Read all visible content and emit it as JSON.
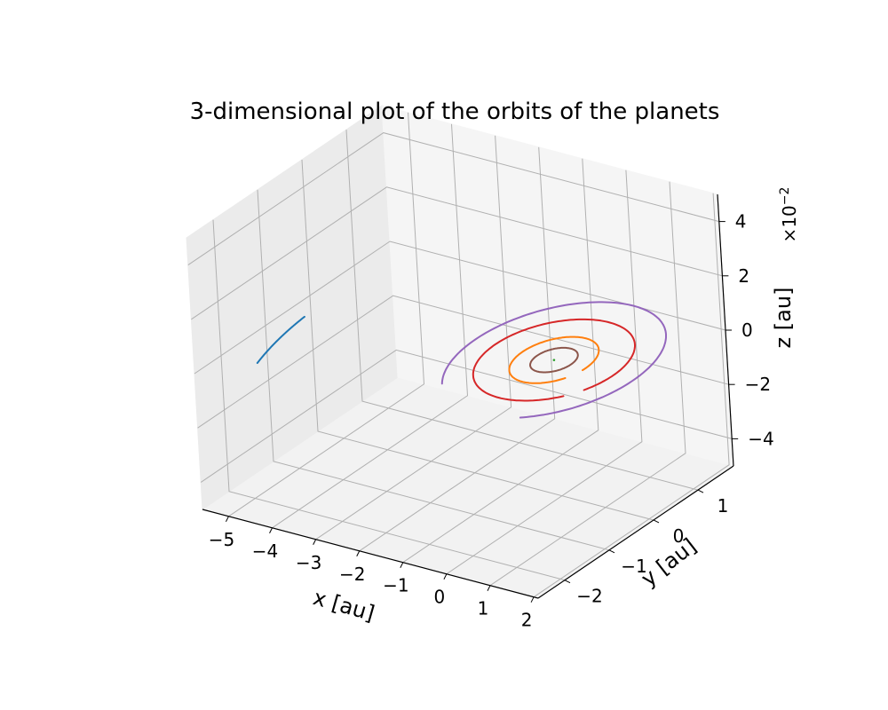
{
  "chart_data": {
    "type": "line3d",
    "title": "3-dimensional plot of the orbits of the planets",
    "xlabel": "x [au]",
    "ylabel": "y [au]",
    "zlabel": "z [au]",
    "z_multiplier": "×10",
    "z_multiplier_exp": "−2",
    "xlim": [
      -5.6,
      2.1
    ],
    "ylim": [
      -2.6,
      1.8
    ],
    "zlim": [
      -0.05,
      0.05
    ],
    "x_ticks": [
      {
        "v": -5,
        "label": "−5"
      },
      {
        "v": -4,
        "label": "−4"
      },
      {
        "v": -3,
        "label": "−3"
      },
      {
        "v": -2,
        "label": "−2"
      },
      {
        "v": -1,
        "label": "−1"
      },
      {
        "v": 0,
        "label": "0"
      },
      {
        "v": 1,
        "label": "1"
      },
      {
        "v": 2,
        "label": "2"
      }
    ],
    "y_ticks": [
      {
        "v": -2,
        "label": "−2"
      },
      {
        "v": -1,
        "label": "−1"
      },
      {
        "v": 0,
        "label": "0"
      },
      {
        "v": 1,
        "label": "1"
      }
    ],
    "z_ticks": [
      {
        "v": -0.04,
        "label": "−4"
      },
      {
        "v": -0.02,
        "label": "−2"
      },
      {
        "v": 0,
        "label": "0"
      },
      {
        "v": 0.02,
        "label": "2"
      },
      {
        "v": 0.04,
        "label": "4"
      }
    ],
    "grid": true,
    "series": [
      {
        "color": "#8c564b",
        "kind": "ellipse",
        "a": 0.387,
        "b": 0.38,
        "cx": 0,
        "cy": 0,
        "t0": 0,
        "t1": 360
      },
      {
        "color": "#ff7f0e",
        "kind": "ellipse",
        "a": 0.72,
        "b": 0.72,
        "cx": 0,
        "cy": 0,
        "t0": -5,
        "t1": 330
      },
      {
        "color": "#d62728",
        "kind": "ellipse",
        "a": 1.35,
        "b": 1.25,
        "cx": 0,
        "cy": 0,
        "t0": 335,
        "t1": 680
      },
      {
        "color": "#9467bd",
        "kind": "ellipse",
        "a": 1.8,
        "b": 1.8,
        "cx": 0,
        "cy": 0,
        "t0": -62,
        "t1": 225
      },
      {
        "color": "#1f77b4",
        "kind": "ellipse",
        "a": 5.2,
        "b": 5.2,
        "cx": 0,
        "cy": 0,
        "t0": 186,
        "t1": 202
      },
      {
        "color": "#2ca02c",
        "kind": "point",
        "x": 0,
        "y": 0,
        "z": 0
      }
    ]
  }
}
